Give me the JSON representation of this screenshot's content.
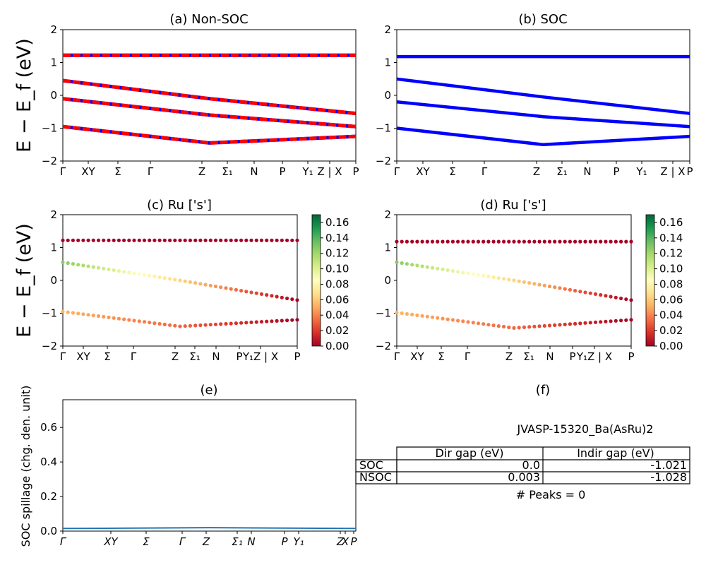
{
  "colors": {
    "red": "#ff0000",
    "blue": "#0000ff",
    "line": "#1f77b4",
    "colormap": [
      "#a50026",
      "#d73027",
      "#f46d43",
      "#fdae61",
      "#fee08b",
      "#ffffbf",
      "#d9ef8b",
      "#a6d96a",
      "#66bd63",
      "#1a9850",
      "#006837"
    ]
  },
  "chart_data": [
    {
      "id": "a",
      "type": "line",
      "title": "(a) Non-SOC",
      "ylabel": "E − E_f (eV)",
      "ylim": [
        -2,
        2
      ],
      "yticks": [
        "2",
        "1",
        "0",
        "−1",
        "−2"
      ],
      "xticks": [
        "Γ",
        "XY",
        "Σ",
        "Γ",
        "Z",
        "Σ₁",
        "N",
        "P",
        "Y₁",
        "Z | X",
        "P"
      ],
      "series": [
        {
          "style": "red-blue-dashed",
          "x": [
            0,
            0.5,
            1
          ],
          "y": [
            1.22,
            1.22,
            1.22
          ]
        },
        {
          "style": "red-blue-dashed",
          "x": [
            0,
            0.5,
            1
          ],
          "y": [
            0.45,
            -0.1,
            -0.55
          ]
        },
        {
          "style": "red-blue-dashed",
          "x": [
            0,
            0.5,
            1
          ],
          "y": [
            -0.1,
            -0.6,
            -0.95
          ]
        },
        {
          "style": "red-blue-dashed",
          "x": [
            0,
            0.5,
            1
          ],
          "y": [
            -0.95,
            -1.45,
            -1.25
          ]
        }
      ]
    },
    {
      "id": "b",
      "type": "line",
      "title": "(b) SOC",
      "ylim": [
        -2,
        2
      ],
      "yticks": [
        "2",
        "1",
        "0",
        "−1",
        "−2"
      ],
      "xticks": [
        "Γ",
        "XY",
        "Σ",
        "Γ",
        "Z",
        "Σ₁",
        "N",
        "P",
        "Y₁",
        "Z | X",
        "P"
      ],
      "series": [
        {
          "style": "blue",
          "x": [
            0,
            0.5,
            1
          ],
          "y": [
            1.18,
            1.18,
            1.18
          ]
        },
        {
          "style": "blue",
          "x": [
            0,
            0.5,
            1
          ],
          "y": [
            0.5,
            -0.05,
            -0.55
          ]
        },
        {
          "style": "blue",
          "x": [
            0,
            0.5,
            1
          ],
          "y": [
            -0.2,
            -0.65,
            -0.95
          ]
        },
        {
          "style": "blue",
          "x": [
            0,
            0.5,
            1
          ],
          "y": [
            -1.0,
            -1.5,
            -1.25
          ]
        }
      ]
    },
    {
      "id": "c",
      "type": "scatter",
      "title": "(c)  Ru ['s']",
      "ylabel": "E − E_f (eV)",
      "ylim": [
        -2,
        2
      ],
      "yticks": [
        "2",
        "1",
        "0",
        "−1",
        "−2"
      ],
      "xticks": [
        "Γ",
        "XY",
        "Σ",
        "Γ",
        "Z",
        "Σ₁",
        "N",
        "P",
        "Y₁Z | X",
        "P"
      ],
      "colorbar": {
        "range": [
          0,
          0.16
        ],
        "ticks": [
          "0.16",
          "0.14",
          "0.12",
          "0.10",
          "0.08",
          "0.06",
          "0.04",
          "0.02",
          "0.00"
        ]
      },
      "bands": [
        {
          "x": [
            0,
            0.5,
            1
          ],
          "y": [
            1.22,
            1.22,
            1.22
          ],
          "c": [
            0.0,
            0.0,
            0.0
          ]
        },
        {
          "x": [
            0,
            0.5,
            1
          ],
          "y": [
            -0.95,
            -1.4,
            -1.2
          ],
          "c": [
            0.05,
            0.03,
            0.0
          ]
        },
        {
          "x": [
            0,
            0.5,
            1
          ],
          "y": [
            0.55,
            0.0,
            -0.6
          ],
          "c": [
            0.12,
            0.06,
            0.0
          ]
        }
      ]
    },
    {
      "id": "d",
      "type": "scatter",
      "title": "(d) Ru ['s']",
      "ylim": [
        -2,
        2
      ],
      "yticks": [
        "2",
        "1",
        "0",
        "−1",
        "−2"
      ],
      "xticks": [
        "Γ",
        "XY",
        "Σ",
        "Γ",
        "Z",
        "Σ₁",
        "N",
        "P",
        "Y₁Z | X",
        "P"
      ],
      "colorbar": {
        "range": [
          0,
          0.16
        ],
        "ticks": [
          "0.16",
          "0.14",
          "0.12",
          "0.10",
          "0.08",
          "0.06",
          "0.04",
          "0.02",
          "0.00"
        ]
      },
      "bands": [
        {
          "x": [
            0,
            0.5,
            1
          ],
          "y": [
            1.18,
            1.18,
            1.18
          ],
          "c": [
            0.0,
            0.0,
            0.0
          ]
        },
        {
          "x": [
            0,
            0.5,
            1
          ],
          "y": [
            -0.98,
            -1.45,
            -1.2
          ],
          "c": [
            0.05,
            0.03,
            0.0
          ]
        },
        {
          "x": [
            0,
            0.5,
            1
          ],
          "y": [
            0.55,
            0.0,
            -0.6
          ],
          "c": [
            0.12,
            0.06,
            0.0
          ]
        }
      ]
    },
    {
      "id": "e",
      "type": "line",
      "title": "(e)",
      "ylabel": "SOC spillage (chg. den. unit)",
      "ylim": [
        0,
        0.76
      ],
      "yticks": [
        "0.6",
        "0.4",
        "0.2",
        "0.0"
      ],
      "xticks": [
        "Γ",
        "XY",
        "Σ",
        "Γ",
        "Z",
        "Σ₁",
        "N",
        "P",
        "Y₁",
        "Z",
        "X",
        "P"
      ],
      "series": [
        {
          "name": "",
          "x": [
            0,
            0.5,
            1
          ],
          "y": [
            0.015,
            0.02,
            0.015
          ]
        }
      ]
    }
  ],
  "info": {
    "title": "(f)",
    "name": "JVASP-15320_Ba(AsRu)2",
    "columns": [
      "Dir gap (eV)",
      "Indir gap (eV)"
    ],
    "rows": [
      {
        "label": "SOC",
        "dir": "0.0",
        "indir": "-1.021"
      },
      {
        "label": "NSOC",
        "dir": "0.003",
        "indir": "-1.028"
      }
    ],
    "peaks": "# Peaks = 0"
  }
}
